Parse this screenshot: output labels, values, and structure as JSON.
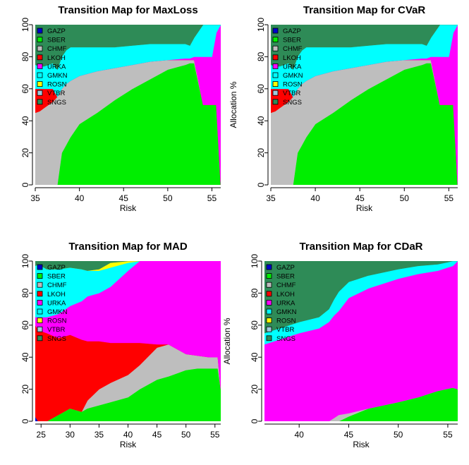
{
  "assets": [
    "GAZP",
    "SBER",
    "CHMF",
    "LKOH",
    "URKA",
    "GMKN",
    "ROSN",
    "VTBR",
    "SNGS"
  ],
  "colors": {
    "GAZP": "#0000cc",
    "SBER": "#00ee00",
    "CHMF": "#bebebe",
    "LKOH": "#ff0000",
    "URKA": "#ff00ff",
    "GMKN": "#00ffff",
    "ROSN": "#ffff00",
    "VTBR": "#9ec9dc",
    "SNGS": "#2e8b57"
  },
  "chart_data": [
    {
      "type": "area",
      "title": "Transition Map for MaxLoss",
      "xlabel": "Risk",
      "ylabel": "Allocation %",
      "show_ylabel": false,
      "xlim": [
        35.0,
        56.0
      ],
      "xticks": [
        35,
        40,
        45,
        50,
        55
      ],
      "ylim": [
        0,
        100
      ],
      "yticks": [
        0,
        20,
        40,
        60,
        80,
        100
      ],
      "legend": "top-left",
      "x": [
        35.0,
        35.5,
        36.0,
        36.5,
        37.0,
        37.5,
        38.0,
        38.5,
        39.0,
        40.0,
        42.0,
        44.0,
        46.0,
        48.0,
        50.0,
        52.0,
        52.5,
        53.0,
        54.0,
        55.0,
        55.5,
        56.0
      ],
      "series": [
        {
          "name": "SBER",
          "values": [
            0,
            0,
            0,
            0,
            0,
            0,
            20,
            25,
            30,
            38,
            45,
            53,
            60,
            66,
            72,
            75,
            76,
            76,
            50,
            50,
            50,
            0
          ]
        },
        {
          "name": "CHMF",
          "values": [
            45,
            46,
            48,
            50,
            52,
            55,
            40,
            38,
            35,
            30,
            26,
            20,
            15,
            11,
            6,
            3,
            2,
            2,
            0,
            0,
            0,
            0
          ]
        },
        {
          "name": "LKOH",
          "values": [
            15,
            14,
            12,
            10,
            8,
            0,
            0,
            0,
            0,
            0,
            0,
            0,
            0,
            0,
            0,
            0,
            0,
            0,
            0,
            0,
            0,
            0
          ]
        },
        {
          "name": "URKA",
          "values": [
            0,
            0,
            0,
            0,
            0,
            0,
            0,
            0,
            0,
            0,
            0,
            0,
            0,
            0,
            0,
            1,
            1,
            2,
            30,
            30,
            45,
            100
          ]
        },
        {
          "name": "GMKN",
          "values": [
            15,
            14,
            14,
            15,
            16,
            17,
            20,
            21,
            21,
            18,
            15,
            13,
            12,
            11,
            10,
            9,
            8,
            12,
            20,
            20,
            5,
            0
          ]
        },
        {
          "name": "SNGS",
          "values": [
            25,
            26,
            26,
            25,
            24,
            28,
            20,
            16,
            14,
            14,
            14,
            14,
            13,
            12,
            12,
            12,
            13,
            8,
            0,
            0,
            0,
            0
          ]
        }
      ]
    },
    {
      "type": "area",
      "title": "Transition Map for CVaR",
      "xlabel": "Risk",
      "ylabel": "Allocation %",
      "show_ylabel": true,
      "xlim": [
        35.0,
        56.0
      ],
      "xticks": [
        35,
        40,
        45,
        50,
        55
      ],
      "ylim": [
        0,
        100
      ],
      "yticks": [
        0,
        20,
        40,
        60,
        80,
        100
      ],
      "legend": "top-left",
      "x": [
        35.0,
        35.5,
        36.0,
        36.5,
        37.0,
        37.5,
        38.0,
        38.5,
        39.0,
        40.0,
        42.0,
        44.0,
        46.0,
        48.0,
        50.0,
        52.0,
        52.5,
        53.0,
        54.0,
        55.0,
        55.5,
        56.0
      ],
      "series": [
        {
          "name": "SBER",
          "values": [
            0,
            0,
            0,
            0,
            0,
            0,
            20,
            25,
            30,
            38,
            45,
            53,
            60,
            66,
            72,
            75,
            76,
            76,
            50,
            50,
            50,
            0
          ]
        },
        {
          "name": "CHMF",
          "values": [
            45,
            46,
            48,
            50,
            52,
            55,
            40,
            38,
            35,
            30,
            26,
            20,
            15,
            11,
            6,
            3,
            2,
            2,
            0,
            0,
            0,
            0
          ]
        },
        {
          "name": "LKOH",
          "values": [
            15,
            14,
            12,
            10,
            8,
            0,
            0,
            0,
            0,
            0,
            0,
            0,
            0,
            0,
            0,
            0,
            0,
            0,
            0,
            0,
            0,
            0
          ]
        },
        {
          "name": "URKA",
          "values": [
            0,
            0,
            0,
            0,
            0,
            0,
            0,
            0,
            0,
            0,
            0,
            0,
            0,
            0,
            0,
            1,
            1,
            2,
            30,
            30,
            45,
            100
          ]
        },
        {
          "name": "GMKN",
          "values": [
            15,
            14,
            14,
            15,
            16,
            17,
            20,
            21,
            21,
            18,
            15,
            13,
            12,
            11,
            10,
            9,
            8,
            12,
            20,
            20,
            5,
            0
          ]
        },
        {
          "name": "SNGS",
          "values": [
            25,
            26,
            26,
            25,
            24,
            28,
            20,
            16,
            14,
            14,
            14,
            14,
            13,
            12,
            12,
            12,
            13,
            8,
            0,
            0,
            0,
            0
          ]
        }
      ]
    },
    {
      "type": "area",
      "title": "Transition Map for MAD",
      "xlabel": "Risk",
      "ylabel": "Allocation %",
      "show_ylabel": false,
      "xlim": [
        24.0,
        56.0
      ],
      "xticks": [
        25,
        30,
        35,
        40,
        45,
        50,
        55
      ],
      "ylim": [
        0,
        100
      ],
      "yticks": [
        0,
        20,
        40,
        60,
        80,
        100
      ],
      "legend": "top-left",
      "x": [
        24.0,
        24.5,
        26.0,
        28.0,
        30.0,
        32.0,
        33.0,
        35.0,
        37.0,
        40.0,
        42.0,
        45.0,
        47.0,
        50.0,
        52.0,
        54.0,
        55.5,
        56.0
      ],
      "series": [
        {
          "name": "GAZP",
          "values": [
            3,
            0,
            0,
            0,
            0,
            0,
            0,
            0,
            0,
            0,
            0,
            0,
            0,
            0,
            0,
            0,
            0,
            0
          ]
        },
        {
          "name": "SBER",
          "values": [
            0,
            0,
            0,
            4,
            8,
            6,
            8,
            10,
            12,
            15,
            20,
            26,
            28,
            32,
            33,
            33,
            33,
            20
          ]
        },
        {
          "name": "CHMF",
          "values": [
            0,
            0,
            0,
            0,
            0,
            0,
            5,
            10,
            12,
            14,
            15,
            20,
            20,
            10,
            8,
            7,
            7,
            0
          ]
        },
        {
          "name": "LKOH",
          "values": [
            57,
            57,
            55,
            48,
            46,
            45,
            37,
            30,
            25,
            20,
            14,
            2,
            0,
            0,
            0,
            0,
            0,
            0
          ]
        },
        {
          "name": "URKA",
          "values": [
            5,
            8,
            10,
            15,
            18,
            24,
            28,
            30,
            35,
            45,
            51,
            72,
            78,
            85,
            88,
            88,
            90,
            100
          ]
        },
        {
          "name": "GMKN",
          "values": [
            32,
            33,
            30,
            28,
            24,
            20,
            16,
            14,
            12,
            5,
            0,
            0,
            0,
            0,
            0,
            0,
            0,
            0
          ]
        },
        {
          "name": "ROSN",
          "values": [
            0,
            0,
            0,
            0,
            0,
            0,
            0,
            1,
            3,
            1,
            0,
            0,
            0,
            0,
            0,
            0,
            0,
            0
          ]
        },
        {
          "name": "SNGS",
          "values": [
            3,
            2,
            5,
            5,
            4,
            5,
            6,
            5,
            1,
            0,
            0,
            0,
            2,
            0,
            0,
            0,
            0,
            0
          ]
        }
      ]
    },
    {
      "type": "area",
      "title": "Transition Map for CDaR",
      "xlabel": "Risk",
      "ylabel": "Allocation %",
      "show_ylabel": true,
      "xlim": [
        36.5,
        56.0
      ],
      "xticks": [
        40,
        45,
        50,
        55
      ],
      "ylim": [
        0,
        100
      ],
      "yticks": [
        0,
        20,
        40,
        60,
        80,
        100
      ],
      "legend": "top-left",
      "x": [
        36.5,
        38.0,
        40.0,
        42.0,
        43.0,
        43.5,
        44.0,
        45.0,
        47.0,
        50.0,
        52.0,
        54.0,
        55.5,
        56.0
      ],
      "series": [
        {
          "name": "SBER",
          "values": [
            0,
            0,
            0,
            0,
            0,
            0,
            0,
            3,
            8,
            12,
            15,
            19,
            21,
            20
          ]
        },
        {
          "name": "CHMF",
          "values": [
            0,
            0,
            0,
            0,
            0,
            2,
            4,
            2,
            0,
            0,
            0,
            0,
            0,
            0
          ]
        },
        {
          "name": "URKA",
          "values": [
            48,
            51,
            55,
            58,
            62,
            64,
            65,
            72,
            75,
            77,
            77,
            75,
            76,
            80
          ]
        },
        {
          "name": "GMKN",
          "values": [
            7,
            7,
            7,
            7,
            8,
            10,
            12,
            10,
            8,
            6,
            5,
            4,
            3,
            0
          ]
        },
        {
          "name": "SNGS",
          "values": [
            45,
            42,
            38,
            35,
            30,
            24,
            19,
            13,
            9,
            5,
            3,
            2,
            0,
            0
          ]
        }
      ]
    }
  ]
}
